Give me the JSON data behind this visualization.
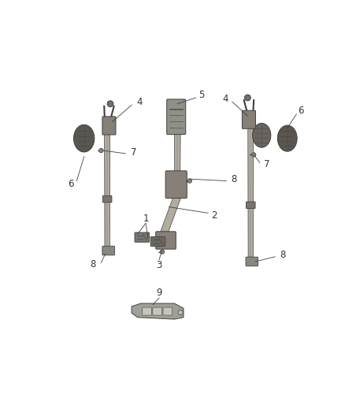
{
  "bg_color": "#ffffff",
  "line_color": "#404040",
  "label_color": "#333333",
  "figsize": [
    4.38,
    5.33
  ],
  "dpi": 100,
  "dark": "#2a2a2a",
  "mid": "#888888",
  "light": "#cccccc",
  "strap": "#b8b4a8",
  "housing": "#8a8680",
  "cover": "#6a6660"
}
